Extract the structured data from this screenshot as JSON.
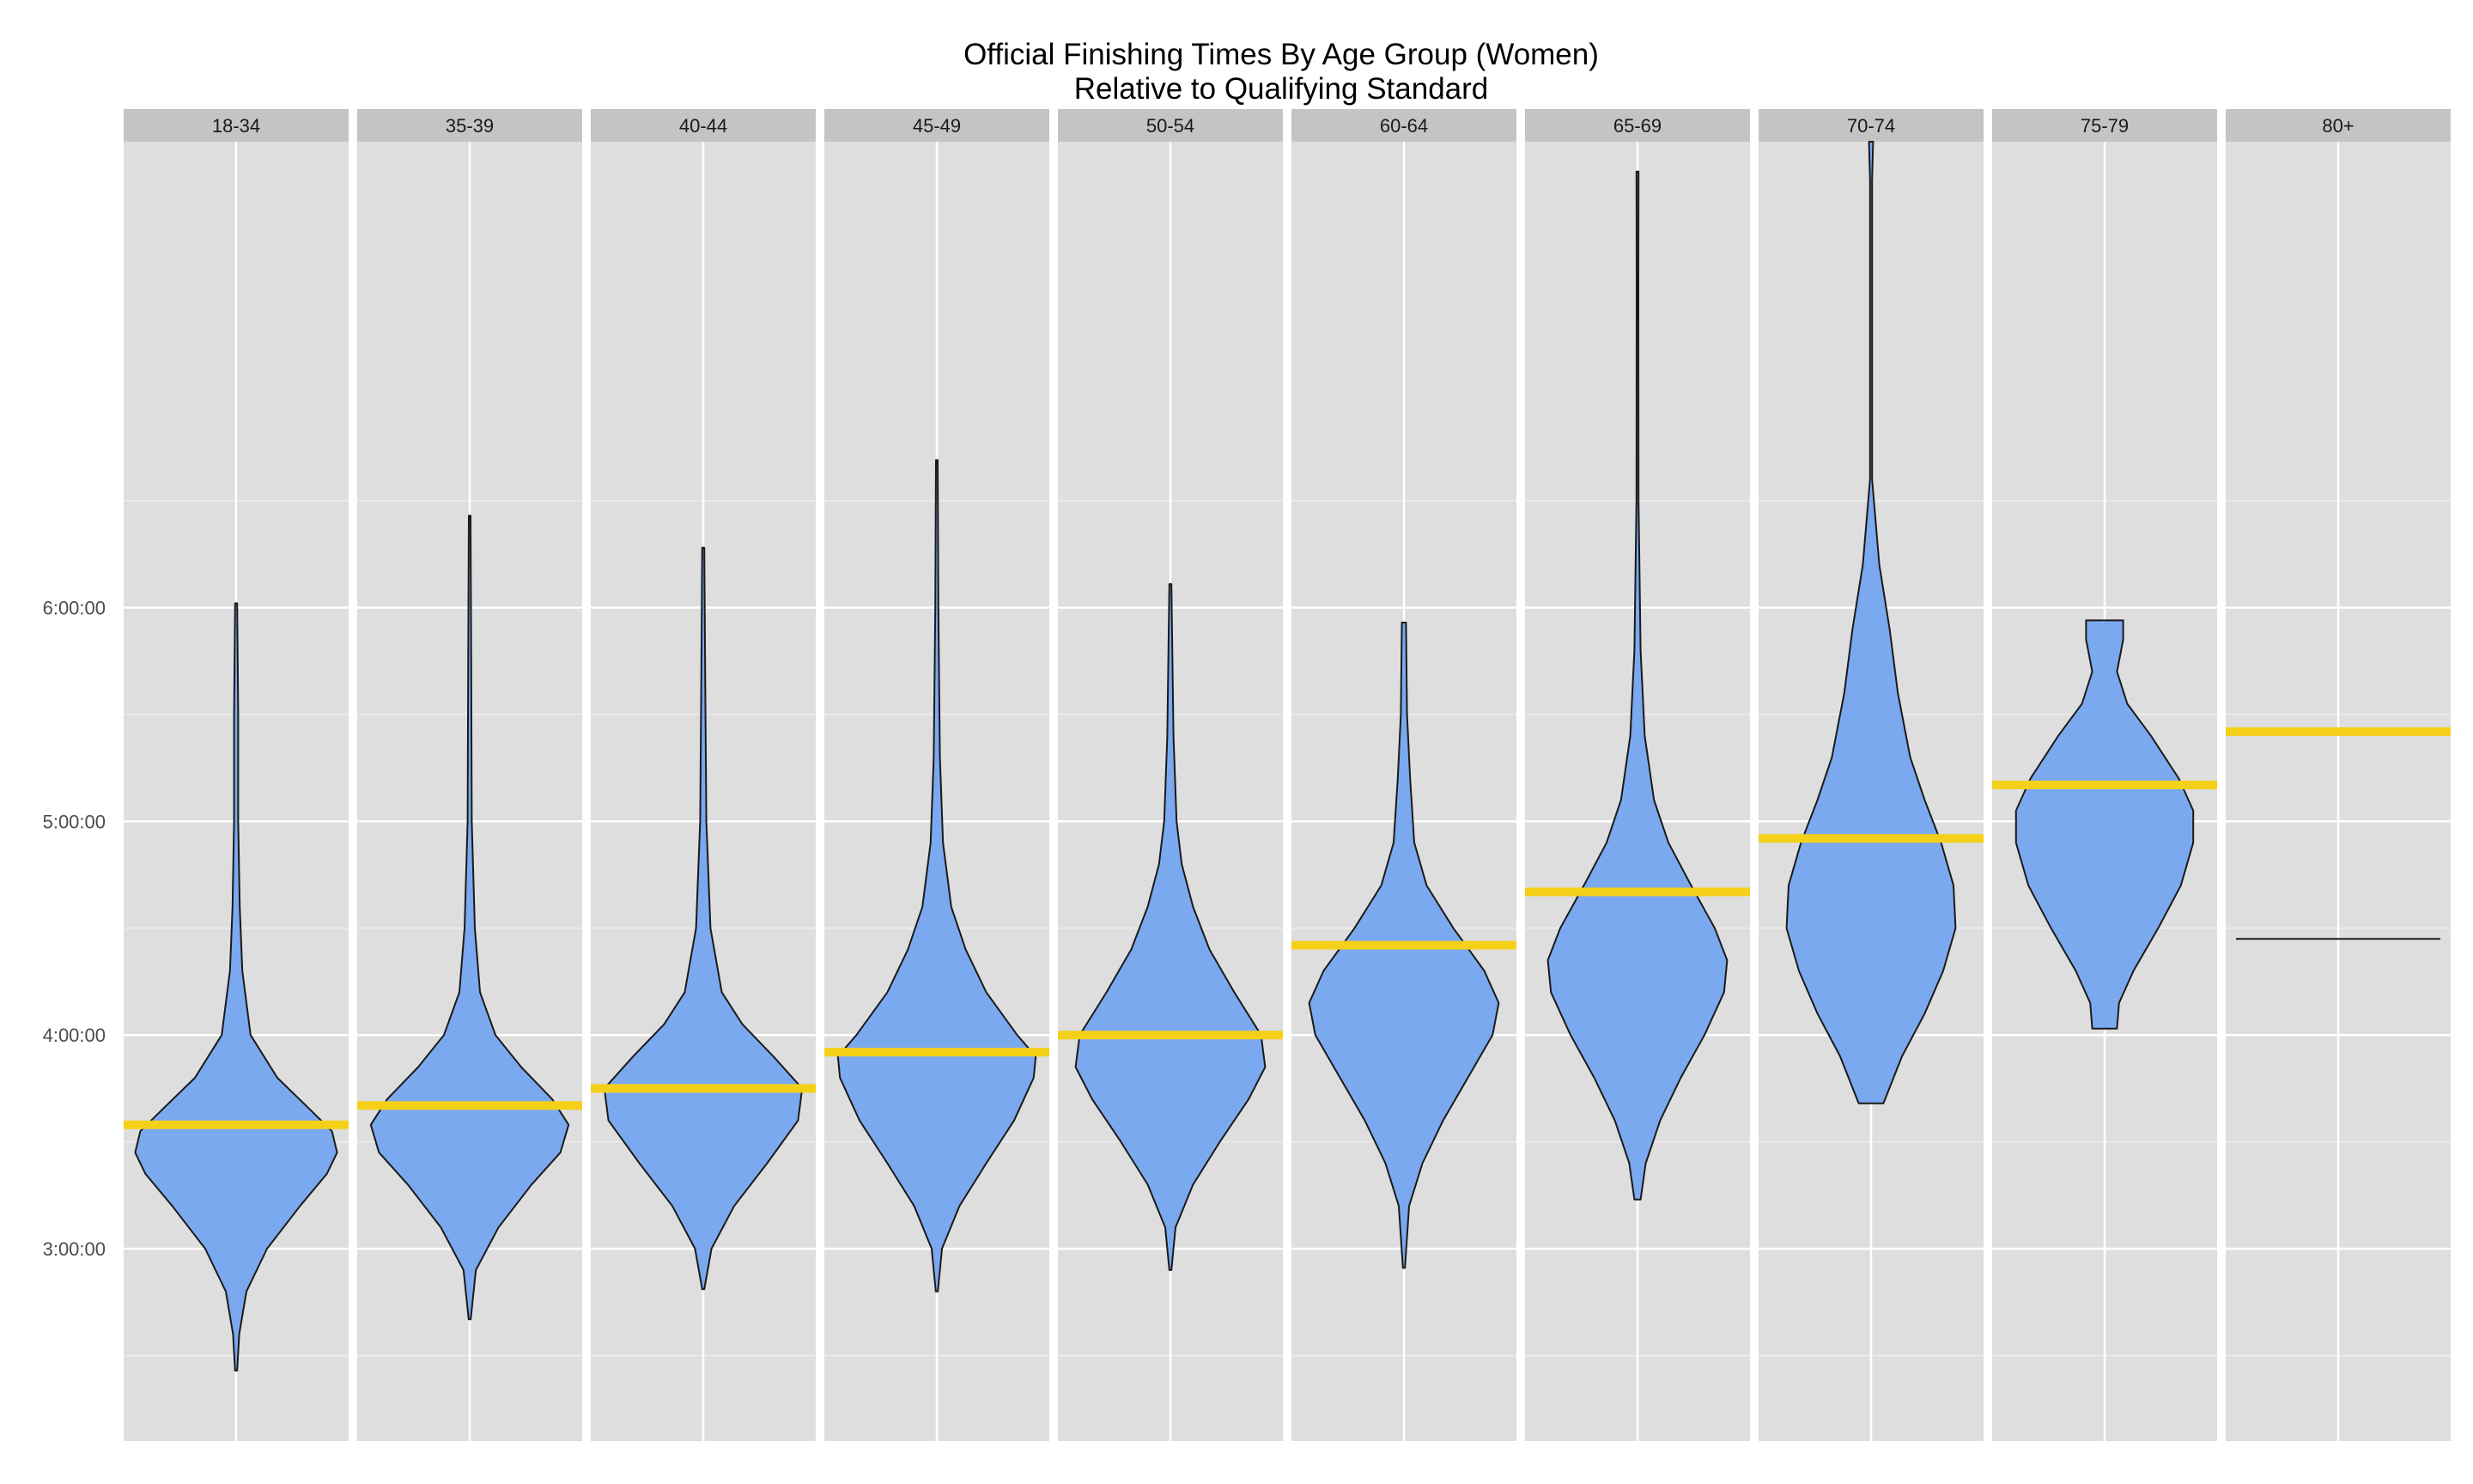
{
  "chart_data": {
    "type": "violin",
    "title_line1": "Official Finishing Times By Age Group (Women)",
    "title_line2": "Relative to Qualifying Standard",
    "xlabel": "",
    "ylabel": "",
    "y_unit": "hours",
    "ylim": [
      2.1,
      8.18
    ],
    "y_ticks": [
      3,
      4,
      5,
      6
    ],
    "y_tick_labels": [
      "3:00:00",
      "4:00:00",
      "5:00:00",
      "6:00:00"
    ],
    "grid": true,
    "colors": {
      "violin_fill": "#7ba9ef",
      "violin_stroke": "#1a1a1a",
      "qualifying_line": "#f5d018",
      "panel_bg": "#dedede",
      "strip_bg": "#c4c4c4"
    },
    "panels": [
      {
        "label": "18-34",
        "qualifying": 3.58,
        "profile": [
          [
            2.43,
            0.01
          ],
          [
            2.6,
            0.03
          ],
          [
            2.8,
            0.1
          ],
          [
            3.0,
            0.3
          ],
          [
            3.2,
            0.62
          ],
          [
            3.35,
            0.88
          ],
          [
            3.45,
            0.98
          ],
          [
            3.55,
            0.93
          ],
          [
            3.65,
            0.72
          ],
          [
            3.8,
            0.4
          ],
          [
            4.0,
            0.14
          ],
          [
            4.3,
            0.06
          ],
          [
            4.6,
            0.035
          ],
          [
            5.0,
            0.02
          ],
          [
            5.5,
            0.02
          ],
          [
            6.02,
            0.01
          ]
        ]
      },
      {
        "label": "35-39",
        "qualifying": 3.67,
        "profile": [
          [
            2.67,
            0.01
          ],
          [
            2.9,
            0.06
          ],
          [
            3.1,
            0.28
          ],
          [
            3.3,
            0.6
          ],
          [
            3.45,
            0.88
          ],
          [
            3.58,
            0.96
          ],
          [
            3.7,
            0.8
          ],
          [
            3.85,
            0.5
          ],
          [
            4.0,
            0.25
          ],
          [
            4.2,
            0.1
          ],
          [
            4.5,
            0.05
          ],
          [
            5.0,
            0.02
          ],
          [
            5.7,
            0.015
          ],
          [
            6.43,
            0.008
          ]
        ]
      },
      {
        "label": "40-44",
        "qualifying": 3.75,
        "profile": [
          [
            2.81,
            0.01
          ],
          [
            3.0,
            0.08
          ],
          [
            3.2,
            0.3
          ],
          [
            3.4,
            0.62
          ],
          [
            3.6,
            0.92
          ],
          [
            3.75,
            0.96
          ],
          [
            3.9,
            0.68
          ],
          [
            4.05,
            0.38
          ],
          [
            4.2,
            0.18
          ],
          [
            4.5,
            0.07
          ],
          [
            5.0,
            0.03
          ],
          [
            5.6,
            0.02
          ],
          [
            6.28,
            0.01
          ]
        ]
      },
      {
        "label": "45-49",
        "qualifying": 3.92,
        "profile": [
          [
            2.8,
            0.01
          ],
          [
            3.0,
            0.05
          ],
          [
            3.2,
            0.22
          ],
          [
            3.4,
            0.48
          ],
          [
            3.6,
            0.75
          ],
          [
            3.8,
            0.94
          ],
          [
            3.9,
            0.96
          ],
          [
            4.0,
            0.78
          ],
          [
            4.2,
            0.48
          ],
          [
            4.4,
            0.28
          ],
          [
            4.6,
            0.14
          ],
          [
            4.9,
            0.06
          ],
          [
            5.3,
            0.03
          ],
          [
            6.0,
            0.015
          ],
          [
            6.69,
            0.008
          ]
        ]
      },
      {
        "label": "50-54",
        "qualifying": 4.0,
        "profile": [
          [
            2.9,
            0.01
          ],
          [
            3.1,
            0.05
          ],
          [
            3.3,
            0.22
          ],
          [
            3.5,
            0.48
          ],
          [
            3.7,
            0.76
          ],
          [
            3.85,
            0.92
          ],
          [
            4.0,
            0.88
          ],
          [
            4.2,
            0.62
          ],
          [
            4.4,
            0.38
          ],
          [
            4.6,
            0.22
          ],
          [
            4.8,
            0.11
          ],
          [
            5.0,
            0.06
          ],
          [
            5.4,
            0.03
          ],
          [
            6.11,
            0.01
          ]
        ]
      },
      {
        "label": "60-64",
        "qualifying": 4.42,
        "profile": [
          [
            2.91,
            0.01
          ],
          [
            3.2,
            0.05
          ],
          [
            3.4,
            0.18
          ],
          [
            3.6,
            0.38
          ],
          [
            3.8,
            0.62
          ],
          [
            4.0,
            0.86
          ],
          [
            4.15,
            0.92
          ],
          [
            4.3,
            0.78
          ],
          [
            4.5,
            0.48
          ],
          [
            4.7,
            0.22
          ],
          [
            4.9,
            0.1
          ],
          [
            5.2,
            0.06
          ],
          [
            5.5,
            0.03
          ],
          [
            5.93,
            0.02
          ]
        ]
      },
      {
        "label": "65-69",
        "qualifying": 4.67,
        "profile": [
          [
            3.23,
            0.03
          ],
          [
            3.4,
            0.08
          ],
          [
            3.6,
            0.22
          ],
          [
            3.8,
            0.42
          ],
          [
            4.0,
            0.65
          ],
          [
            4.2,
            0.84
          ],
          [
            4.35,
            0.87
          ],
          [
            4.5,
            0.75
          ],
          [
            4.7,
            0.52
          ],
          [
            4.9,
            0.3
          ],
          [
            5.1,
            0.16
          ],
          [
            5.4,
            0.07
          ],
          [
            5.8,
            0.03
          ],
          [
            6.5,
            0.01
          ],
          [
            7.5,
            0.008
          ],
          [
            8.04,
            0.01
          ]
        ]
      },
      {
        "label": "70-74",
        "qualifying": 4.92,
        "profile": [
          [
            3.68,
            0.12
          ],
          [
            3.9,
            0.3
          ],
          [
            4.1,
            0.52
          ],
          [
            4.3,
            0.7
          ],
          [
            4.5,
            0.82
          ],
          [
            4.7,
            0.8
          ],
          [
            4.9,
            0.68
          ],
          [
            5.1,
            0.52
          ],
          [
            5.3,
            0.38
          ],
          [
            5.6,
            0.26
          ],
          [
            5.9,
            0.18
          ],
          [
            6.2,
            0.08
          ],
          [
            6.6,
            0.01
          ],
          [
            7.5,
            0.01
          ],
          [
            8.0,
            0.01
          ],
          [
            8.18,
            0.02
          ]
        ]
      },
      {
        "label": "75-79",
        "qualifying": 5.17,
        "profile": [
          [
            4.03,
            0.12
          ],
          [
            4.15,
            0.14
          ],
          [
            4.3,
            0.28
          ],
          [
            4.5,
            0.52
          ],
          [
            4.7,
            0.74
          ],
          [
            4.9,
            0.86
          ],
          [
            5.05,
            0.86
          ],
          [
            5.2,
            0.72
          ],
          [
            5.4,
            0.45
          ],
          [
            5.55,
            0.22
          ],
          [
            5.7,
            0.12
          ],
          [
            5.85,
            0.18
          ],
          [
            5.94,
            0.18
          ]
        ]
      },
      {
        "label": "80+",
        "qualifying": 5.42,
        "single_value": 4.45,
        "profile": []
      }
    ]
  }
}
